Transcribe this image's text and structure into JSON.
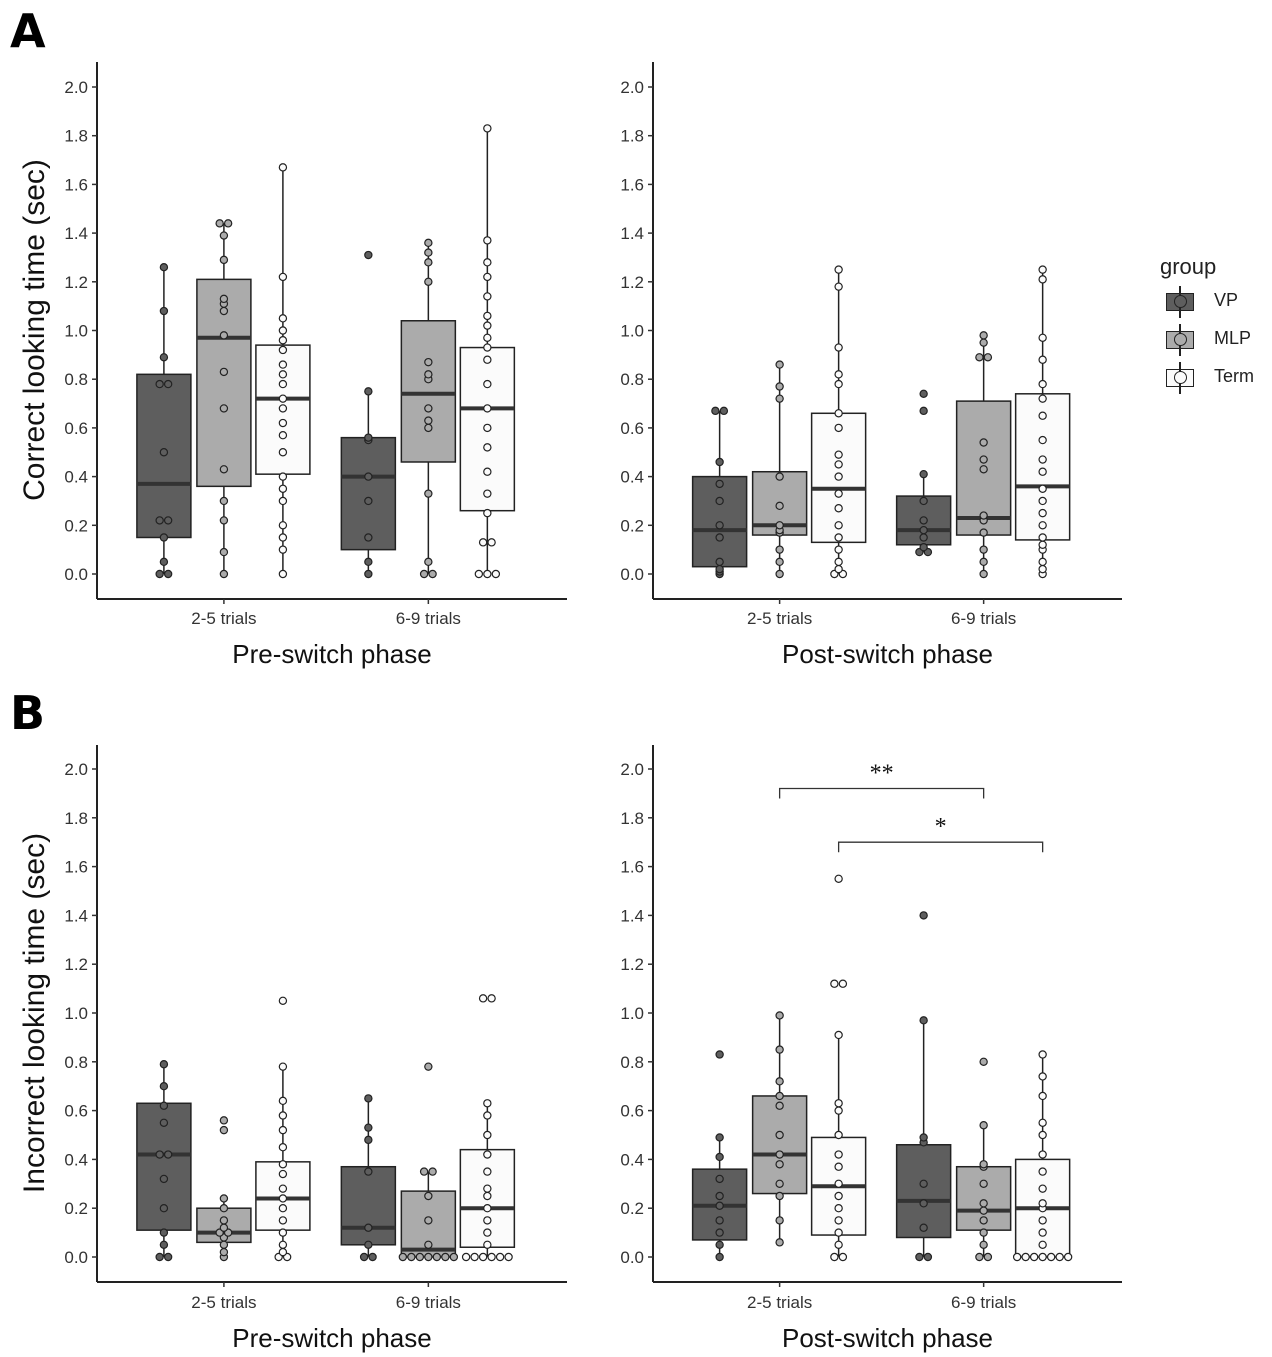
{
  "panel_labels": [
    "A",
    "B"
  ],
  "legend": {
    "title": "group",
    "items": [
      {
        "label": "VP",
        "color": "#5e5e5e"
      },
      {
        "label": "MLP",
        "color": "#ababab"
      },
      {
        "label": "Term",
        "color": "#fbfbfb"
      }
    ]
  },
  "chart_data": [
    {
      "type": "box",
      "panel": "A",
      "xlabel": "Pre-switch phase",
      "ylabel": "Correct looking time (sec)",
      "categories": [
        "2-5 trials",
        "6-9 trials"
      ],
      "groups": [
        "VP",
        "MLP",
        "Term"
      ],
      "ylim": [
        -0.1,
        2.1
      ],
      "yticks": [
        "0.0",
        "0.2",
        "0.4",
        "0.6",
        "0.8",
        "1.0",
        "1.2",
        "1.4",
        "1.6",
        "1.8",
        "2.0"
      ],
      "boxes": [
        {
          "category": "2-5 trials",
          "group": "VP",
          "q1": 0.15,
          "median": 0.37,
          "q3": 0.82,
          "whisker_low": 0.0,
          "whisker_high": 1.26,
          "points": [
            0,
            0,
            0.05,
            0.15,
            0.22,
            0.22,
            0.5,
            0.78,
            0.78,
            0.89,
            1.08,
            1.26
          ]
        },
        {
          "category": "2-5 trials",
          "group": "MLP",
          "q1": 0.36,
          "median": 0.97,
          "q3": 1.21,
          "whisker_low": 0.0,
          "whisker_high": 1.44,
          "points": [
            0,
            0.09,
            0.22,
            0.3,
            0.43,
            0.68,
            0.83,
            0.98,
            1.08,
            1.11,
            1.13,
            1.29,
            1.39,
            1.44,
            1.44
          ]
        },
        {
          "category": "2-5 trials",
          "group": "Term",
          "q1": 0.41,
          "median": 0.72,
          "q3": 0.94,
          "whisker_low": 0.0,
          "whisker_high": 1.67,
          "points": [
            0,
            0.1,
            0.15,
            0.2,
            0.3,
            0.35,
            0.4,
            0.5,
            0.57,
            0.62,
            0.68,
            0.72,
            0.78,
            0.82,
            0.86,
            0.92,
            0.96,
            1.0,
            1.05,
            1.22,
            1.67
          ]
        },
        {
          "category": "6-9 trials",
          "group": "VP",
          "q1": 0.1,
          "median": 0.4,
          "q3": 0.56,
          "whisker_low": 0.0,
          "whisker_high": 0.75,
          "points": [
            0,
            0.05,
            0.15,
            0.3,
            0.4,
            0.55,
            0.56,
            0.75,
            1.31
          ]
        },
        {
          "category": "6-9 trials",
          "group": "MLP",
          "q1": 0.46,
          "median": 0.74,
          "q3": 1.04,
          "whisker_low": 0.0,
          "whisker_high": 1.36,
          "points": [
            0,
            0,
            0.05,
            0.33,
            0.6,
            0.63,
            0.68,
            0.8,
            0.82,
            0.87,
            1.2,
            1.28,
            1.32,
            1.36
          ]
        },
        {
          "category": "6-9 trials",
          "group": "Term",
          "q1": 0.26,
          "median": 0.68,
          "q3": 0.93,
          "whisker_low": 0.0,
          "whisker_high": 1.83,
          "points": [
            0,
            0,
            0,
            0.13,
            0.13,
            0.25,
            0.33,
            0.42,
            0.52,
            0.6,
            0.68,
            0.78,
            0.88,
            0.93,
            0.97,
            1.02,
            1.06,
            1.14,
            1.22,
            1.28,
            1.37,
            1.83
          ]
        }
      ]
    },
    {
      "type": "box",
      "panel": "A",
      "xlabel": "Post-switch phase",
      "ylabel": "",
      "categories": [
        "2-5 trials",
        "6-9 trials"
      ],
      "groups": [
        "VP",
        "MLP",
        "Term"
      ],
      "ylim": [
        -0.1,
        2.1
      ],
      "yticks": [
        "0.0",
        "0.2",
        "0.4",
        "0.6",
        "0.8",
        "1.0",
        "1.2",
        "1.4",
        "1.6",
        "1.8",
        "2.0"
      ],
      "boxes": [
        {
          "category": "2-5 trials",
          "group": "VP",
          "q1": 0.03,
          "median": 0.18,
          "q3": 0.4,
          "whisker_low": 0.0,
          "whisker_high": 0.67,
          "points": [
            0,
            0.01,
            0.02,
            0.05,
            0.15,
            0.2,
            0.3,
            0.37,
            0.46,
            0.67,
            0.67
          ]
        },
        {
          "category": "2-5 trials",
          "group": "MLP",
          "q1": 0.16,
          "median": 0.2,
          "q3": 0.42,
          "whisker_low": 0.0,
          "whisker_high": 0.86,
          "points": [
            0,
            0.05,
            0.1,
            0.17,
            0.18,
            0.2,
            0.28,
            0.4,
            0.72,
            0.77,
            0.86
          ]
        },
        {
          "category": "2-5 trials",
          "group": "Term",
          "q1": 0.13,
          "median": 0.35,
          "q3": 0.66,
          "whisker_low": 0.0,
          "whisker_high": 1.25,
          "points": [
            0,
            0,
            0.02,
            0.05,
            0.1,
            0.15,
            0.2,
            0.27,
            0.33,
            0.4,
            0.45,
            0.49,
            0.6,
            0.66,
            0.78,
            0.82,
            0.93,
            1.18,
            1.25
          ]
        },
        {
          "category": "6-9 trials",
          "group": "VP",
          "q1": 0.12,
          "median": 0.18,
          "q3": 0.32,
          "whisker_low": 0.09,
          "whisker_high": 0.41,
          "points": [
            0.09,
            0.09,
            0.11,
            0.15,
            0.18,
            0.22,
            0.3,
            0.41,
            0.67,
            0.74
          ]
        },
        {
          "category": "6-9 trials",
          "group": "MLP",
          "q1": 0.16,
          "median": 0.23,
          "q3": 0.71,
          "whisker_low": 0.0,
          "whisker_high": 0.98,
          "points": [
            0,
            0.05,
            0.1,
            0.17,
            0.22,
            0.24,
            0.43,
            0.47,
            0.54,
            0.89,
            0.89,
            0.95,
            0.98
          ]
        },
        {
          "category": "6-9 trials",
          "group": "Term",
          "q1": 0.14,
          "median": 0.36,
          "q3": 0.74,
          "whisker_low": 0.0,
          "whisker_high": 1.25,
          "points": [
            0,
            0.02,
            0.05,
            0.1,
            0.12,
            0.15,
            0.2,
            0.25,
            0.3,
            0.35,
            0.42,
            0.47,
            0.55,
            0.65,
            0.72,
            0.78,
            0.88,
            0.97,
            1.21,
            1.25
          ]
        }
      ]
    },
    {
      "type": "box",
      "panel": "B",
      "xlabel": "Pre-switch phase",
      "ylabel": "Incorrect looking time (sec)",
      "categories": [
        "2-5 trials",
        "6-9 trials"
      ],
      "groups": [
        "VP",
        "MLP",
        "Term"
      ],
      "ylim": [
        -0.1,
        2.1
      ],
      "yticks": [
        "0.0",
        "0.2",
        "0.4",
        "0.6",
        "0.8",
        "1.0",
        "1.2",
        "1.4",
        "1.6",
        "1.8",
        "2.0"
      ],
      "boxes": [
        {
          "category": "2-5 trials",
          "group": "VP",
          "q1": 0.11,
          "median": 0.42,
          "q3": 0.63,
          "whisker_low": 0.0,
          "whisker_high": 0.79,
          "points": [
            0,
            0,
            0.05,
            0.1,
            0.2,
            0.32,
            0.42,
            0.42,
            0.55,
            0.62,
            0.7,
            0.79
          ]
        },
        {
          "category": "2-5 trials",
          "group": "MLP",
          "q1": 0.06,
          "median": 0.1,
          "q3": 0.2,
          "whisker_low": 0.0,
          "whisker_high": 0.24,
          "points": [
            0,
            0.02,
            0.05,
            0.08,
            0.1,
            0.1,
            0.12,
            0.15,
            0.2,
            0.24,
            0.52,
            0.56
          ]
        },
        {
          "category": "2-5 trials",
          "group": "Term",
          "q1": 0.11,
          "median": 0.24,
          "q3": 0.39,
          "whisker_low": 0.0,
          "whisker_high": 0.78,
          "points": [
            0,
            0,
            0.02,
            0.05,
            0.1,
            0.15,
            0.2,
            0.24,
            0.28,
            0.34,
            0.38,
            0.45,
            0.52,
            0.58,
            0.64,
            0.78,
            1.05
          ]
        },
        {
          "category": "6-9 trials",
          "group": "VP",
          "q1": 0.05,
          "median": 0.12,
          "q3": 0.37,
          "whisker_low": 0.0,
          "whisker_high": 0.65,
          "points": [
            0,
            0,
            0.05,
            0.12,
            0.35,
            0.48,
            0.53,
            0.65
          ]
        },
        {
          "category": "6-9 trials",
          "group": "MLP",
          "q1": 0.0,
          "median": 0.03,
          "q3": 0.27,
          "whisker_low": 0.0,
          "whisker_high": 0.35,
          "points": [
            0,
            0,
            0,
            0,
            0,
            0,
            0,
            0.05,
            0.15,
            0.25,
            0.35,
            0.35,
            0.78
          ]
        },
        {
          "category": "6-9 trials",
          "group": "Term",
          "q1": 0.04,
          "median": 0.2,
          "q3": 0.44,
          "whisker_low": 0.0,
          "whisker_high": 0.63,
          "points": [
            0,
            0,
            0,
            0,
            0,
            0,
            0.05,
            0.1,
            0.15,
            0.2,
            0.25,
            0.28,
            0.35,
            0.42,
            0.5,
            0.58,
            0.63,
            1.06,
            1.06
          ]
        }
      ]
    },
    {
      "type": "box",
      "panel": "B",
      "xlabel": "Post-switch phase",
      "ylabel": "",
      "categories": [
        "2-5 trials",
        "6-9 trials"
      ],
      "groups": [
        "VP",
        "MLP",
        "Term"
      ],
      "ylim": [
        -0.1,
        2.1
      ],
      "yticks": [
        "0.0",
        "0.2",
        "0.4",
        "0.6",
        "0.8",
        "1.0",
        "1.2",
        "1.4",
        "1.6",
        "1.8",
        "2.0"
      ],
      "boxes": [
        {
          "category": "2-5 trials",
          "group": "VP",
          "q1": 0.07,
          "median": 0.21,
          "q3": 0.36,
          "whisker_low": 0.0,
          "whisker_high": 0.49,
          "points": [
            0,
            0.05,
            0.1,
            0.15,
            0.21,
            0.25,
            0.32,
            0.41,
            0.49,
            0.83
          ]
        },
        {
          "category": "2-5 trials",
          "group": "MLP",
          "q1": 0.26,
          "median": 0.42,
          "q3": 0.66,
          "whisker_low": 0.06,
          "whisker_high": 0.99,
          "points": [
            0.06,
            0.15,
            0.25,
            0.3,
            0.38,
            0.42,
            0.5,
            0.62,
            0.66,
            0.72,
            0.85,
            0.99
          ]
        },
        {
          "category": "2-5 trials",
          "group": "Term",
          "q1": 0.09,
          "median": 0.29,
          "q3": 0.49,
          "whisker_low": 0.0,
          "whisker_high": 0.91,
          "points": [
            0,
            0,
            0.05,
            0.1,
            0.15,
            0.2,
            0.25,
            0.3,
            0.37,
            0.42,
            0.5,
            0.6,
            0.63,
            0.91,
            1.12,
            1.12,
            1.55
          ]
        },
        {
          "category": "6-9 trials",
          "group": "VP",
          "q1": 0.08,
          "median": 0.23,
          "q3": 0.46,
          "whisker_low": 0.0,
          "whisker_high": 0.97,
          "points": [
            0,
            0,
            0.12,
            0.22,
            0.3,
            0.47,
            0.49,
            0.97,
            1.4
          ]
        },
        {
          "category": "6-9 trials",
          "group": "MLP",
          "q1": 0.11,
          "median": 0.19,
          "q3": 0.37,
          "whisker_low": 0.0,
          "whisker_high": 0.54,
          "points": [
            0,
            0,
            0.05,
            0.1,
            0.15,
            0.19,
            0.22,
            0.3,
            0.37,
            0.38,
            0.54,
            0.8
          ]
        },
        {
          "category": "6-9 trials",
          "group": "Term",
          "q1": 0.0,
          "median": 0.2,
          "q3": 0.4,
          "whisker_low": 0.0,
          "whisker_high": 0.83,
          "points": [
            0,
            0,
            0,
            0,
            0,
            0,
            0,
            0.05,
            0.1,
            0.15,
            0.2,
            0.22,
            0.28,
            0.35,
            0.42,
            0.5,
            0.55,
            0.66,
            0.74,
            0.83
          ]
        }
      ],
      "annotations": [
        {
          "text": "**",
          "from": "2-5 trials MLP",
          "to": "6-9 trials MLP",
          "y": 1.92
        },
        {
          "text": "*",
          "from": "2-5 trials Term",
          "to": "6-9 trials Term",
          "y": 1.7
        }
      ]
    }
  ]
}
